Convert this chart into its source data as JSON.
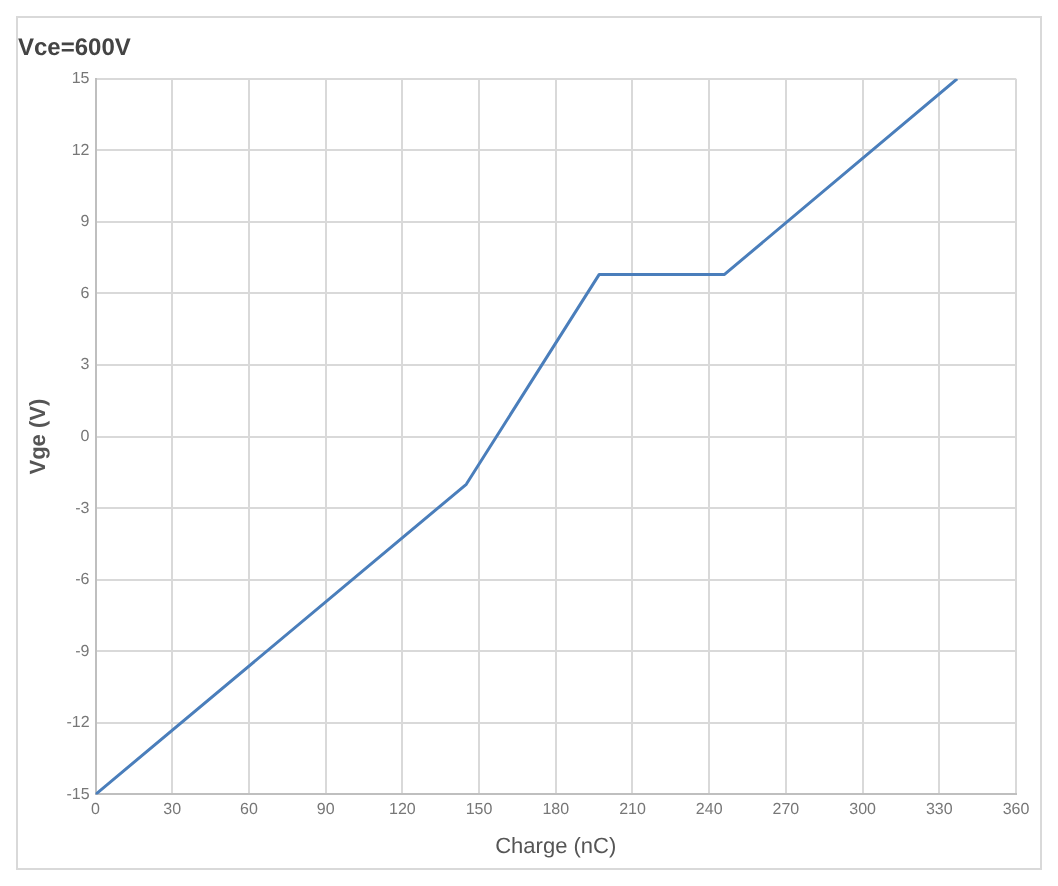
{
  "chart_data": {
    "type": "line",
    "title": "Vce=600V",
    "xlabel": "Charge (nC)",
    "ylabel": "Vge (V)",
    "series": [
      {
        "color": "#4a7ebb",
        "x": [
          0,
          145,
          197,
          246,
          337
        ],
        "values": [
          -15,
          -2,
          6.8,
          6.8,
          15
        ]
      }
    ],
    "xlim": [
      0,
      360
    ],
    "xticks": [
      0,
      30,
      60,
      90,
      120,
      150,
      180,
      210,
      240,
      270,
      300,
      330,
      360
    ],
    "ylim": [
      -15,
      15
    ],
    "yticks": [
      -15,
      -12,
      -9,
      -6,
      -3,
      0,
      3,
      6,
      9,
      12,
      15
    ],
    "grid": true,
    "legend": false,
    "marker": "none",
    "line_style": "solid"
  }
}
